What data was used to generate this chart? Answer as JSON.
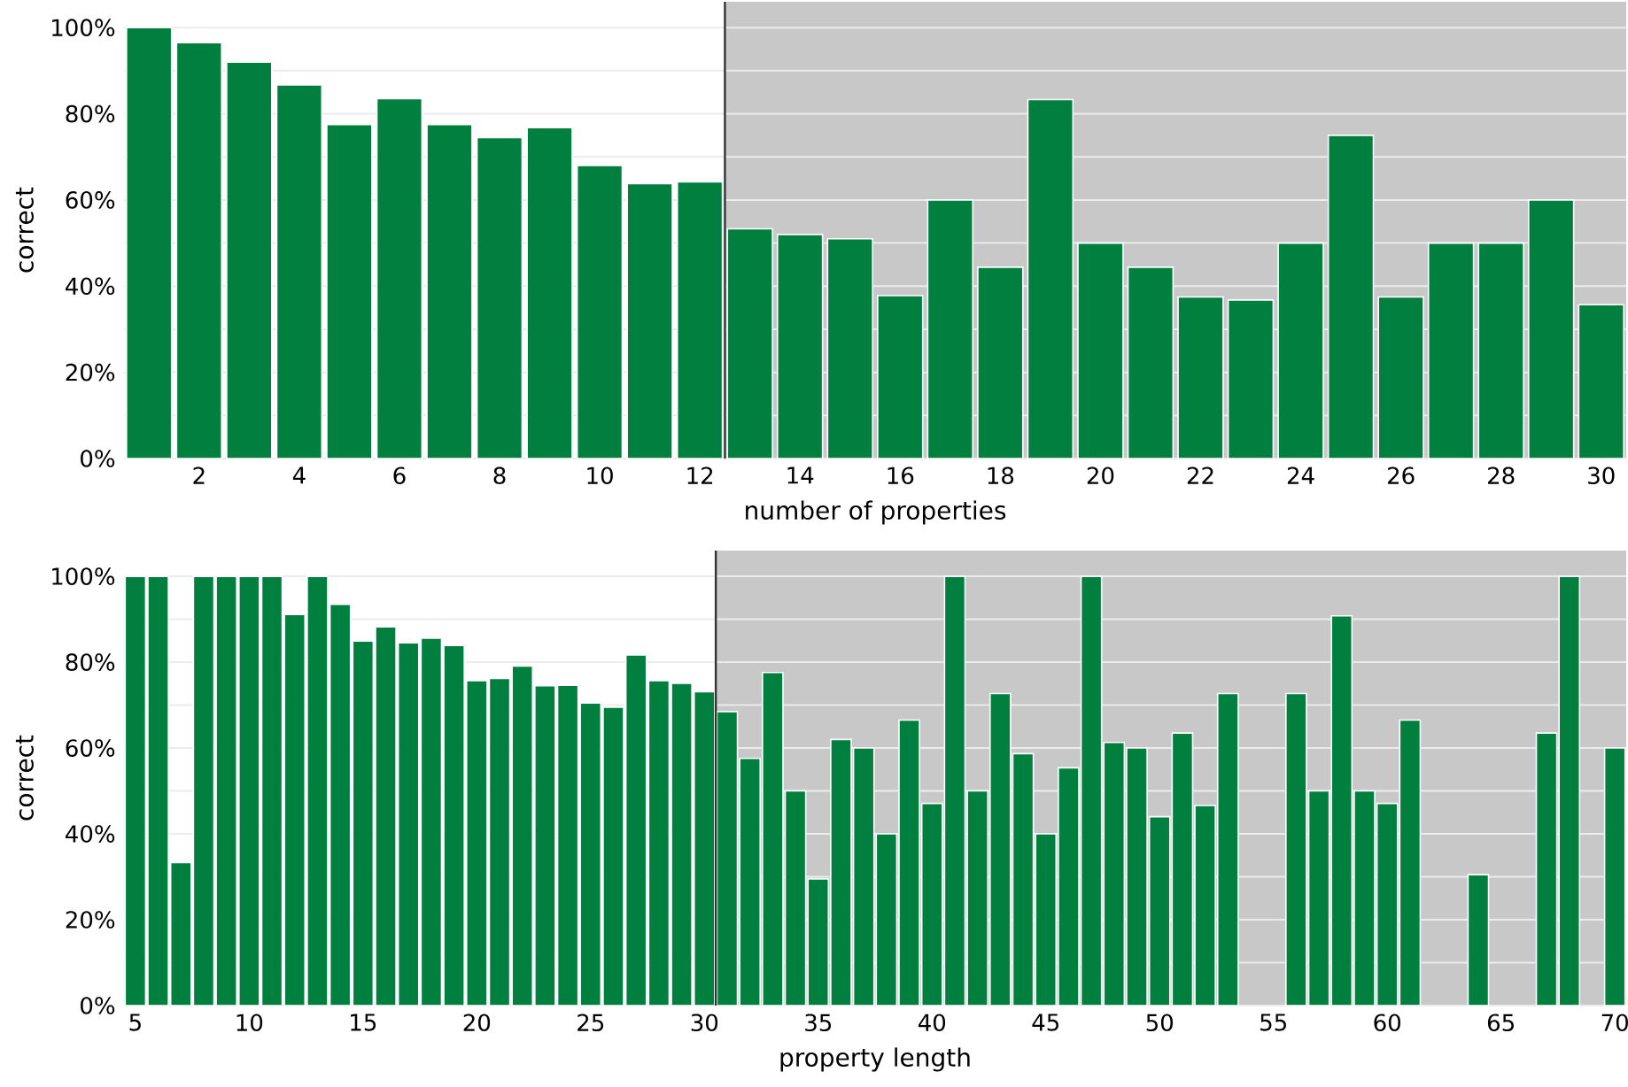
{
  "chart_data": [
    {
      "type": "bar",
      "xlabel": "number of properties",
      "ylabel": "correct",
      "color": "#007f3f",
      "x": [
        1,
        2,
        3,
        4,
        5,
        6,
        7,
        8,
        9,
        10,
        11,
        12,
        13,
        14,
        15,
        16,
        17,
        18,
        19,
        20,
        21,
        22,
        23,
        24,
        25,
        26,
        27,
        28,
        29,
        30
      ],
      "values": [
        100,
        96.5,
        92,
        86.7,
        77.5,
        83.5,
        77.5,
        74.5,
        76.8,
        68,
        63.8,
        64.2,
        53.3,
        52,
        51,
        37.8,
        60,
        44.4,
        83.3,
        50,
        44.4,
        37.5,
        36.8,
        50,
        75,
        37.5,
        50,
        50,
        60,
        35.7
      ],
      "xlim": [
        0.5,
        30.5
      ],
      "ylim": [
        0,
        106
      ],
      "xticks": [
        2,
        4,
        6,
        8,
        10,
        12,
        14,
        16,
        18,
        20,
        22,
        24,
        26,
        28,
        30
      ],
      "yticks": [
        {
          "value": 0,
          "label": "0%"
        },
        {
          "value": 10,
          "label": null
        },
        {
          "value": 20,
          "label": "20%"
        },
        {
          "value": 30,
          "label": null
        },
        {
          "value": 40,
          "label": "40%"
        },
        {
          "value": 50,
          "label": null
        },
        {
          "value": 60,
          "label": "60%"
        },
        {
          "value": 70,
          "label": null
        },
        {
          "value": 80,
          "label": "80%"
        },
        {
          "value": 90,
          "label": null
        },
        {
          "value": 100,
          "label": "100%"
        }
      ],
      "grid": "y",
      "bands": [
        {
          "axis": "x",
          "from": 12.5,
          "to": 30.5,
          "color": "#c8c8c8"
        }
      ],
      "ref_lines": [
        {
          "axis": "x",
          "value": 12.5,
          "color": "#333333"
        }
      ]
    },
    {
      "type": "bar",
      "xlabel": "property length",
      "ylabel": "correct",
      "color": "#007f3f",
      "x": [
        5,
        6,
        7,
        8,
        9,
        10,
        11,
        12,
        13,
        14,
        15,
        16,
        17,
        18,
        19,
        20,
        21,
        22,
        23,
        24,
        25,
        26,
        27,
        28,
        29,
        30,
        31,
        32,
        33,
        34,
        35,
        36,
        37,
        38,
        39,
        40,
        41,
        42,
        43,
        44,
        45,
        46,
        47,
        48,
        49,
        50,
        51,
        52,
        53,
        54,
        55,
        56,
        57,
        58,
        59,
        60,
        61,
        62,
        63,
        64,
        65,
        66,
        67,
        68,
        69,
        70
      ],
      "values": [
        100,
        100,
        33.3,
        100,
        100,
        100,
        100,
        91.1,
        100,
        93.5,
        84.9,
        88.2,
        84.5,
        85.6,
        83.9,
        75.7,
        76.2,
        79.1,
        74.5,
        74.6,
        70.5,
        69.5,
        81.7,
        75.7,
        75.1,
        73.1,
        68.5,
        57.6,
        77.6,
        50,
        29.5,
        62,
        60,
        40,
        66.5,
        47.1,
        100,
        50,
        72.7,
        58.7,
        40,
        55.4,
        100,
        61.3,
        60,
        44,
        63.5,
        46.6,
        72.7,
        null,
        null,
        72.7,
        50,
        90.8,
        50,
        47.1,
        66.5,
        null,
        null,
        30.5,
        null,
        null,
        63.5,
        100,
        null,
        60
      ],
      "xlim": [
        4.5,
        70.5
      ],
      "ylim": [
        0,
        106
      ],
      "xticks": [
        5,
        10,
        15,
        20,
        25,
        30,
        35,
        40,
        45,
        50,
        55,
        60,
        65,
        70
      ],
      "yticks": [
        {
          "value": 0,
          "label": "0%"
        },
        {
          "value": 10,
          "label": null
        },
        {
          "value": 20,
          "label": "20%"
        },
        {
          "value": 30,
          "label": null
        },
        {
          "value": 40,
          "label": "40%"
        },
        {
          "value": 50,
          "label": null
        },
        {
          "value": 60,
          "label": "60%"
        },
        {
          "value": 70,
          "label": null
        },
        {
          "value": 80,
          "label": "80%"
        },
        {
          "value": 90,
          "label": null
        },
        {
          "value": 100,
          "label": "100%"
        }
      ],
      "grid": "y",
      "bands": [
        {
          "axis": "x",
          "from": 30.5,
          "to": 70.5,
          "color": "#c8c8c8"
        }
      ],
      "ref_lines": [
        {
          "axis": "x",
          "value": 30.5,
          "color": "#333333"
        }
      ]
    }
  ]
}
